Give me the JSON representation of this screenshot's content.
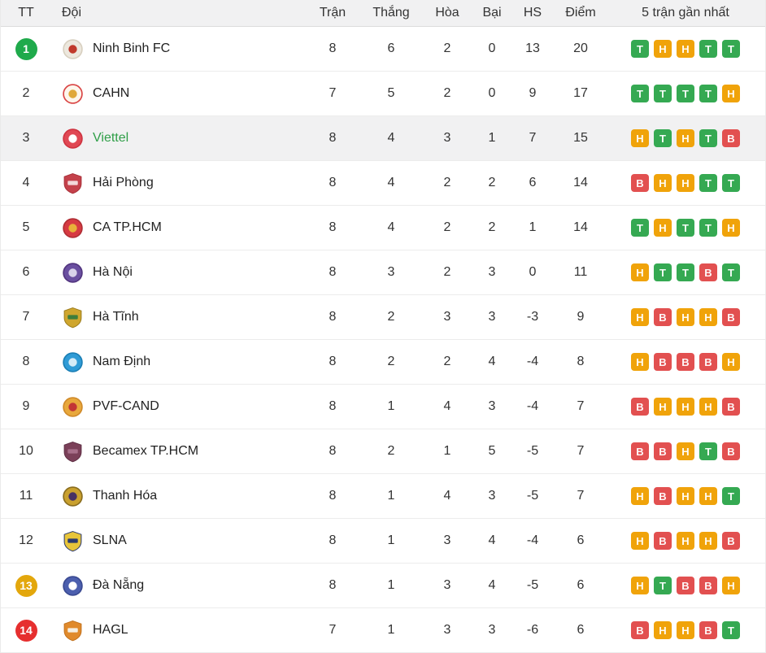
{
  "table": {
    "headers": {
      "position": "TT",
      "team": "Đội",
      "played": "Trận",
      "wins": "Thắng",
      "draws": "Hòa",
      "losses": "Bại",
      "goal_diff": "HS",
      "points": "Điểm",
      "form": "5 trận gần nhất"
    },
    "rows": [
      {
        "pos": "1",
        "pos_badge": "green",
        "team": "Ninh Binh FC",
        "played": "8",
        "wins": "6",
        "draws": "2",
        "losses": "0",
        "gd": "13",
        "points": "20",
        "form": [
          "T",
          "H",
          "H",
          "T",
          "T"
        ],
        "logo": {
          "shape": "circle",
          "c1": "#ede8de",
          "c2": "#d8d0c0",
          "c3": "#c0392b"
        }
      },
      {
        "pos": "2",
        "pos_badge": "",
        "team": "CAHN",
        "played": "7",
        "wins": "5",
        "draws": "2",
        "losses": "0",
        "gd": "9",
        "points": "17",
        "form": [
          "T",
          "T",
          "T",
          "T",
          "H"
        ],
        "logo": {
          "shape": "circle",
          "c1": "#fdf6ec",
          "c2": "#d94343",
          "c3": "#e0a83a"
        }
      },
      {
        "pos": "3",
        "pos_badge": "",
        "team": "Viettel",
        "played": "8",
        "wins": "4",
        "draws": "3",
        "losses": "1",
        "gd": "7",
        "points": "15",
        "form": [
          "H",
          "T",
          "H",
          "T",
          "B"
        ],
        "highlight": true,
        "team_color_highlight": true,
        "logo": {
          "shape": "circle",
          "c1": "#e04854",
          "c2": "#cf3340",
          "c3": "#ffffff"
        }
      },
      {
        "pos": "4",
        "pos_badge": "",
        "team": "Hải Phòng",
        "played": "8",
        "wins": "4",
        "draws": "2",
        "losses": "2",
        "gd": "6",
        "points": "14",
        "form": [
          "B",
          "H",
          "H",
          "T",
          "T"
        ],
        "logo": {
          "shape": "shield",
          "c1": "#c4414b",
          "c2": "#a83039",
          "c3": "#f2d8da"
        }
      },
      {
        "pos": "5",
        "pos_badge": "",
        "team": "CA TP.HCM",
        "played": "8",
        "wins": "4",
        "draws": "2",
        "losses": "2",
        "gd": "1",
        "points": "14",
        "form": [
          "T",
          "H",
          "T",
          "T",
          "H"
        ],
        "logo": {
          "shape": "circle",
          "c1": "#d63a42",
          "c2": "#b02e35",
          "c3": "#e8b03a"
        }
      },
      {
        "pos": "6",
        "pos_badge": "",
        "team": "Hà Nội",
        "played": "8",
        "wins": "3",
        "draws": "2",
        "losses": "3",
        "gd": "0",
        "points": "11",
        "form": [
          "H",
          "T",
          "T",
          "B",
          "T"
        ],
        "logo": {
          "shape": "circle",
          "c1": "#6a4fa0",
          "c2": "#52357f",
          "c3": "#d9d2ea"
        }
      },
      {
        "pos": "7",
        "pos_badge": "",
        "team": "Hà Tĩnh",
        "played": "8",
        "wins": "2",
        "draws": "3",
        "losses": "3",
        "gd": "-3",
        "points": "9",
        "form": [
          "H",
          "B",
          "H",
          "H",
          "B"
        ],
        "logo": {
          "shape": "shield",
          "c1": "#cfa62e",
          "c2": "#9c7d1e",
          "c3": "#3e7d3c"
        }
      },
      {
        "pos": "8",
        "pos_badge": "",
        "team": "Nam Định",
        "played": "8",
        "wins": "2",
        "draws": "2",
        "losses": "4",
        "gd": "-4",
        "points": "8",
        "form": [
          "H",
          "B",
          "B",
          "B",
          "H"
        ],
        "logo": {
          "shape": "circle",
          "c1": "#2f9bd6",
          "c2": "#1b7fb5",
          "c3": "#d6ecf7"
        }
      },
      {
        "pos": "9",
        "pos_badge": "",
        "team": "PVF-CAND",
        "played": "8",
        "wins": "1",
        "draws": "4",
        "losses": "3",
        "gd": "-4",
        "points": "7",
        "form": [
          "B",
          "H",
          "H",
          "H",
          "B"
        ],
        "logo": {
          "shape": "circle",
          "c1": "#e8a83c",
          "c2": "#d08a2a",
          "c3": "#c23535"
        }
      },
      {
        "pos": "10",
        "pos_badge": "",
        "team": "Becamex TP.HCM",
        "played": "8",
        "wins": "2",
        "draws": "1",
        "losses": "5",
        "gd": "-5",
        "points": "7",
        "form": [
          "B",
          "B",
          "H",
          "T",
          "B"
        ],
        "logo": {
          "shape": "shield",
          "c1": "#7b4059",
          "c2": "#5f2f44",
          "c3": "#a86f8a"
        }
      },
      {
        "pos": "11",
        "pos_badge": "",
        "team": "Thanh Hóa",
        "played": "8",
        "wins": "1",
        "draws": "4",
        "losses": "3",
        "gd": "-5",
        "points": "7",
        "form": [
          "H",
          "B",
          "H",
          "H",
          "T"
        ],
        "logo": {
          "shape": "circle",
          "c1": "#c9a02e",
          "c2": "#8a6d1f",
          "c3": "#463063"
        }
      },
      {
        "pos": "12",
        "pos_badge": "",
        "team": "SLNA",
        "played": "8",
        "wins": "1",
        "draws": "3",
        "losses": "4",
        "gd": "-4",
        "points": "6",
        "form": [
          "H",
          "B",
          "H",
          "H",
          "B"
        ],
        "logo": {
          "shape": "shield",
          "c1": "#e8c53a",
          "c2": "#2c3a6e",
          "c3": "#2c3a6e"
        }
      },
      {
        "pos": "13",
        "pos_badge": "amber",
        "team": "Đà Nẵng",
        "played": "8",
        "wins": "1",
        "draws": "3",
        "losses": "4",
        "gd": "-5",
        "points": "6",
        "form": [
          "H",
          "T",
          "B",
          "B",
          "H"
        ],
        "logo": {
          "shape": "circle",
          "c1": "#4c5fae",
          "c2": "#3a4a92",
          "c3": "#ffffff"
        }
      },
      {
        "pos": "14",
        "pos_badge": "red",
        "team": "HAGL",
        "played": "7",
        "wins": "1",
        "draws": "3",
        "losses": "3",
        "gd": "-6",
        "points": "6",
        "form": [
          "B",
          "H",
          "H",
          "B",
          "T"
        ],
        "logo": {
          "shape": "shield",
          "c1": "#e08a2c",
          "c2": "#c2711c",
          "c3": "#f5efe3"
        }
      }
    ]
  },
  "colors": {
    "form": {
      "T": "#35a952",
      "H": "#f0a30a",
      "B": "#e25050"
    },
    "pos_badges": {
      "green": "#1faa4b",
      "amber": "#e3a70c",
      "red": "#e62f2f"
    },
    "row_highlight": "#f1f1f2",
    "team_name_highlight": "#2e9e47"
  }
}
